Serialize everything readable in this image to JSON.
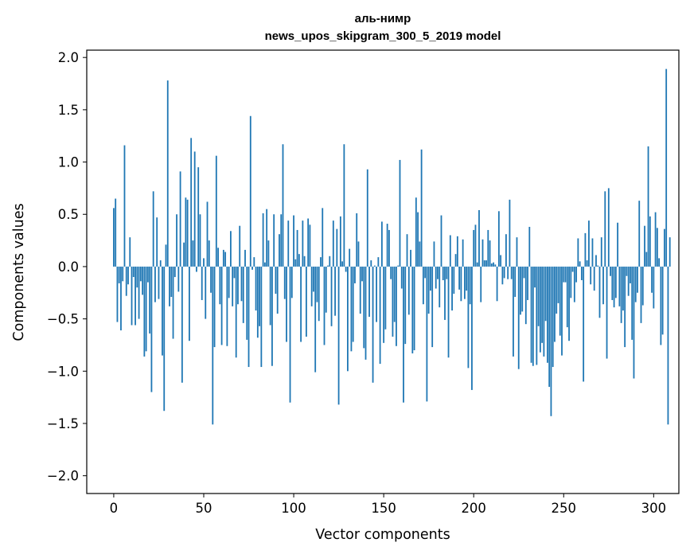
{
  "chart_data": {
    "type": "bar",
    "title": "аль-нимр",
    "subtitle": "news_upos_skipgram_300_5_2019 model",
    "xlabel": "Vector components",
    "ylabel": "Components values",
    "xlim": [
      -15,
      314
    ],
    "ylim": [
      -2.17,
      2.07
    ],
    "xticks": [
      0,
      50,
      100,
      150,
      200,
      250,
      300
    ],
    "yticks": [
      -2.0,
      -1.5,
      -1.0,
      -0.5,
      0.0,
      0.5,
      1.0,
      1.5,
      2.0
    ],
    "xtick_labels": [
      "0",
      "50",
      "100",
      "150",
      "200",
      "250",
      "300"
    ],
    "ytick_labels": [
      "−2.0",
      "−1.5",
      "−1.0",
      "−0.5",
      "0.0",
      "0.5",
      "1.0",
      "1.5",
      "2.0"
    ],
    "grid": false,
    "legend": "none",
    "bar_color": "#1f77b4",
    "series": [
      {
        "values": [
          0.56,
          0.65,
          -0.53,
          -0.16,
          -0.61,
          -0.14,
          1.16,
          -0.28,
          -0.17,
          0.28,
          -0.56,
          -0.1,
          -0.56,
          -0.2,
          -0.5,
          -0.14,
          -0.27,
          -0.86,
          -0.81,
          -0.15,
          -0.64,
          -1.2,
          0.72,
          -0.34,
          0.47,
          -0.31,
          0.06,
          -0.85,
          -1.38,
          0.21,
          1.78,
          -0.38,
          -0.29,
          -0.69,
          -0.1,
          0.5,
          -0.24,
          0.91,
          -1.11,
          0.23,
          0.66,
          0.64,
          -0.71,
          1.23,
          0.25,
          1.1,
          -0.05,
          0.95,
          0.5,
          -0.32,
          0.08,
          -0.5,
          0.62,
          0.25,
          -0.25,
          -1.51,
          -0.77,
          1.06,
          0.18,
          -0.36,
          -0.75,
          0.16,
          0.14,
          -0.76,
          -0.3,
          0.34,
          -0.38,
          -0.11,
          -0.87,
          -0.36,
          0.39,
          -0.33,
          -0.54,
          0.16,
          -0.7,
          -0.96,
          1.44,
          -0.03,
          0.09,
          -0.42,
          -0.68,
          -0.57,
          -0.96,
          0.51,
          0.04,
          0.55,
          0.25,
          -0.56,
          -0.95,
          0.5,
          -0.26,
          -0.45,
          0.31,
          0.5,
          1.17,
          -0.31,
          -0.72,
          0.44,
          -1.3,
          -0.3,
          0.49,
          0.07,
          0.35,
          0.12,
          -0.72,
          0.44,
          0.1,
          -0.67,
          0.46,
          0.4,
          -0.38,
          -0.24,
          -1.01,
          -0.34,
          -0.52,
          0.09,
          0.56,
          -0.75,
          -0.44,
          0.01,
          0.1,
          -0.57,
          0.44,
          -0.47,
          0.36,
          -1.32,
          0.48,
          0.05,
          1.17,
          -0.05,
          -1.0,
          0.17,
          -0.81,
          -0.72,
          -0.16,
          0.51,
          0.24,
          -0.45,
          -0.14,
          -0.78,
          -0.89,
          0.93,
          -0.48,
          0.06,
          -1.11,
          0.01,
          -0.53,
          0.09,
          -0.93,
          0.43,
          -0.73,
          -0.6,
          0.41,
          0.35,
          -0.12,
          -0.67,
          -0.53,
          -0.76,
          0.01,
          1.02,
          -0.21,
          -1.3,
          -0.74,
          0.31,
          -0.46,
          0.16,
          -0.83,
          -0.8,
          0.66,
          0.52,
          0.24,
          1.12,
          -0.36,
          -0.11,
          -1.29,
          -0.45,
          -0.23,
          -0.77,
          0.24,
          -0.21,
          -0.12,
          -0.39,
          0.49,
          -0.13,
          -0.51,
          -0.12,
          -0.87,
          0.3,
          -0.42,
          -0.26,
          0.12,
          0.29,
          -0.22,
          -0.33,
          0.26,
          -0.31,
          -0.23,
          -0.97,
          -0.36,
          -1.18,
          0.35,
          0.4,
          0.04,
          0.54,
          -0.34,
          0.26,
          0.06,
          0.06,
          0.35,
          0.25,
          0.03,
          0.04,
          0.02,
          -0.33,
          0.53,
          0.11,
          -0.17,
          -0.11,
          0.31,
          -0.12,
          0.64,
          -0.12,
          -0.86,
          -0.29,
          0.28,
          -0.98,
          -0.46,
          -0.43,
          -0.11,
          -0.55,
          -0.32,
          0.38,
          -0.92,
          -0.95,
          -0.2,
          -0.94,
          -0.57,
          -0.82,
          -0.73,
          -0.86,
          -0.52,
          -0.92,
          -1.15,
          -1.43,
          -0.96,
          -0.72,
          -0.45,
          -0.35,
          -0.66,
          -0.85,
          -0.15,
          -0.15,
          -0.58,
          -0.71,
          -0.3,
          -0.05,
          -0.34,
          -0.15,
          0.27,
          0.05,
          -0.13,
          -1.1,
          0.32,
          0.06,
          0.44,
          -0.17,
          0.27,
          -0.23,
          0.11,
          0.01,
          -0.49,
          0.28,
          -0.36,
          0.72,
          -0.88,
          0.75,
          -0.09,
          -0.32,
          -0.39,
          -0.3,
          0.42,
          -0.38,
          -0.54,
          -0.42,
          -0.77,
          -0.09,
          -0.28,
          -0.16,
          -0.7,
          -1.07,
          -0.34,
          -0.25,
          0.63,
          -0.54,
          -0.37,
          0.39,
          0.14,
          1.15,
          0.48,
          -0.25,
          -0.4,
          0.52,
          0.37,
          0.08,
          -0.75,
          -0.65,
          0.36,
          1.89,
          -1.51,
          0.28
        ]
      }
    ]
  }
}
